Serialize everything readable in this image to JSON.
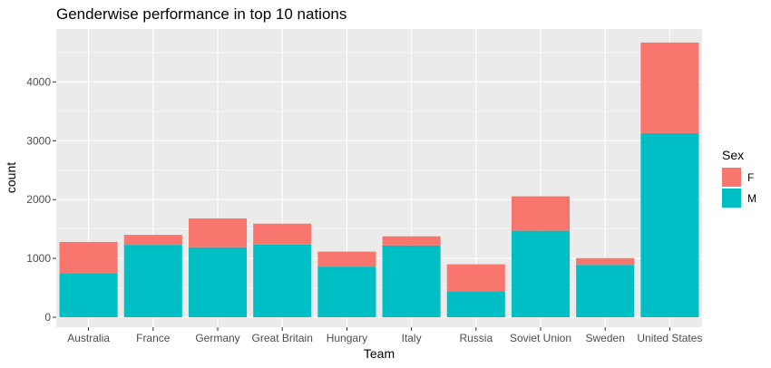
{
  "chart_data": {
    "type": "bar",
    "stacked": true,
    "title": "Genderwise performance in top 10 nations",
    "xlabel": "Team",
    "ylabel": "count",
    "categories": [
      "Australia",
      "France",
      "Germany",
      "Great Britain",
      "Hungary",
      "Italy",
      "Russia",
      "Soviet Union",
      "Sweden",
      "United States"
    ],
    "series": [
      {
        "name": "M",
        "color": "#00BFC4",
        "values": [
          750,
          1230,
          1190,
          1235,
          860,
          1220,
          440,
          1470,
          890,
          3130
        ]
      },
      {
        "name": "F",
        "color": "#F8766D",
        "values": [
          530,
          170,
          490,
          355,
          255,
          155,
          460,
          585,
          115,
          1540
        ]
      }
    ],
    "ylim": [
      -170,
      4900
    ],
    "yticks": [
      0,
      1000,
      2000,
      3000,
      4000
    ],
    "grid": true,
    "legend": {
      "title": "Sex",
      "position": "right",
      "items": [
        {
          "label": "F",
          "color": "#F8766D"
        },
        {
          "label": "M",
          "color": "#00BFC4"
        }
      ]
    }
  }
}
